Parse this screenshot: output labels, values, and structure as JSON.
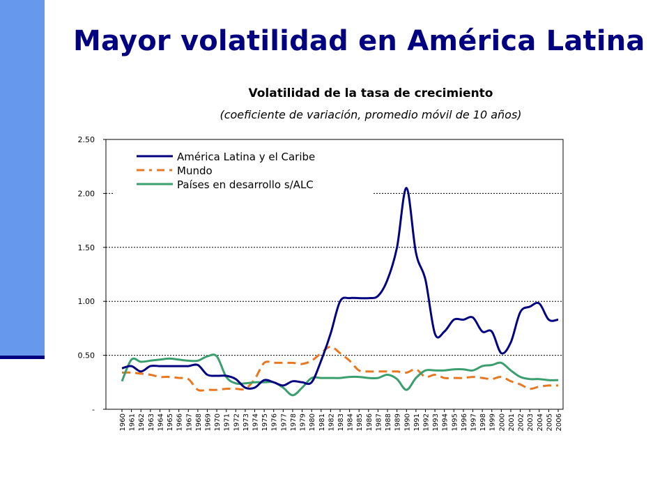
{
  "slide": {
    "title": "Mayor volatilidad en América Latina",
    "accent_color": "#6699ee",
    "title_color": "#000080"
  },
  "chart_data": {
    "type": "line",
    "title": "Volatilidad de la tasa de crecimiento",
    "subtitle": "(coeficiente de variación, promedio móvil de 10 años)",
    "xlabel": "",
    "ylabel": "",
    "ylim": [
      0,
      2.5
    ],
    "yticks": [
      0,
      0.5,
      1.0,
      1.5,
      2.0,
      2.5
    ],
    "ytick_labels": [
      "-",
      "0.50",
      "1.00",
      "1.50",
      "2.00",
      "2.50"
    ],
    "grid": "horizontal dashed",
    "legend_position": "top-left",
    "x": [
      "1960",
      "1961",
      "1962",
      "1963",
      "1964",
      "1965",
      "1966",
      "1967",
      "1968",
      "1969",
      "1970",
      "1971",
      "1972",
      "1973",
      "1974",
      "1975",
      "1976",
      "1977",
      "1978",
      "1979",
      "1980",
      "1981",
      "1982",
      "1983",
      "1984",
      "1985",
      "1986",
      "1987",
      "1988",
      "1989",
      "1990",
      "1991",
      "1992",
      "1993",
      "1994",
      "1995",
      "1996",
      "1997",
      "1998",
      "1999",
      "2000",
      "2001",
      "2002",
      "2003",
      "2004",
      "2005",
      "2006"
    ],
    "series": [
      {
        "name": "América Latina y el Caribe",
        "color": "#000080",
        "style": "solid",
        "values": [
          0.38,
          0.4,
          0.35,
          0.4,
          0.4,
          0.4,
          0.4,
          0.4,
          0.41,
          0.32,
          0.31,
          0.31,
          0.28,
          0.2,
          0.2,
          0.27,
          0.25,
          0.22,
          0.26,
          0.25,
          0.25,
          0.45,
          0.7,
          1.0,
          1.03,
          1.03,
          1.03,
          1.05,
          1.2,
          1.5,
          2.05,
          1.45,
          1.2,
          0.7,
          0.72,
          0.83,
          0.83,
          0.85,
          0.72,
          0.72,
          0.52,
          0.62,
          0.9,
          0.95,
          0.98,
          0.83,
          0.83
        ]
      },
      {
        "name": "Mundo",
        "color": "#e87722",
        "style": "dashed",
        "values": [
          0.34,
          0.34,
          0.33,
          0.32,
          0.3,
          0.3,
          0.29,
          0.28,
          0.18,
          0.18,
          0.18,
          0.19,
          0.19,
          0.19,
          0.28,
          0.43,
          0.43,
          0.43,
          0.43,
          0.42,
          0.45,
          0.52,
          0.58,
          0.52,
          0.45,
          0.36,
          0.35,
          0.35,
          0.35,
          0.35,
          0.34,
          0.37,
          0.3,
          0.32,
          0.29,
          0.29,
          0.29,
          0.3,
          0.29,
          0.28,
          0.3,
          0.26,
          0.23,
          0.19,
          0.21,
          0.22,
          0.22
        ]
      },
      {
        "name": "Países en desarrollo s/ALC",
        "color": "#3a9e6e",
        "style": "solid",
        "values": [
          0.26,
          0.46,
          0.44,
          0.45,
          0.46,
          0.47,
          0.46,
          0.45,
          0.45,
          0.49,
          0.49,
          0.3,
          0.24,
          0.24,
          0.25,
          0.25,
          0.25,
          0.2,
          0.13,
          0.2,
          0.29,
          0.29,
          0.29,
          0.29,
          0.3,
          0.3,
          0.29,
          0.29,
          0.32,
          0.28,
          0.18,
          0.29,
          0.36,
          0.36,
          0.36,
          0.37,
          0.37,
          0.36,
          0.4,
          0.41,
          0.43,
          0.36,
          0.3,
          0.28,
          0.28,
          0.27,
          0.27
        ]
      }
    ]
  }
}
